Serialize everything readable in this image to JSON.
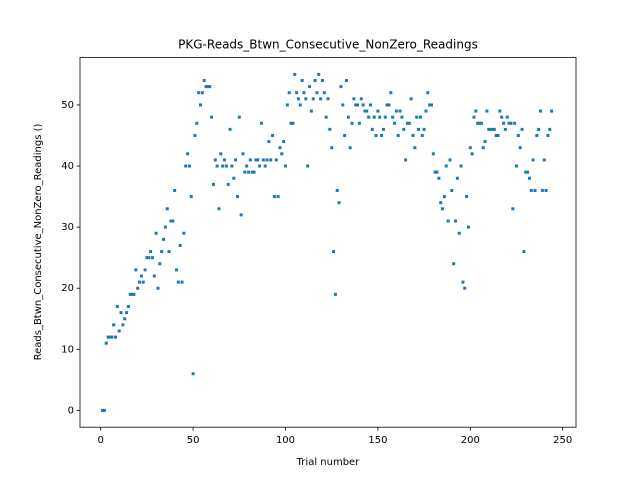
{
  "chart_data": {
    "type": "scatter",
    "title": "PKG-Reads_Btwn_Consecutive_NonZero_Readings",
    "x_label": "Trial number",
    "y_label": "Reads_Btwn_Consecutive_NonZero_Readings ()",
    "color": "#1f77b4",
    "xlim": [
      -11.2,
      257.2
    ],
    "xticks": [
      0,
      50,
      100,
      150,
      200,
      250
    ],
    "ylim": [
      -2.75,
      57.75
    ],
    "yticks": [
      0,
      10,
      20,
      30,
      40,
      50
    ],
    "x": [
      1,
      2,
      3,
      4,
      5,
      6,
      7,
      8,
      9,
      10,
      11,
      12,
      13,
      14,
      15,
      16,
      17,
      18,
      19,
      20,
      21,
      22,
      23,
      24,
      25,
      26,
      27,
      28,
      29,
      30,
      31,
      32,
      33,
      34,
      35,
      36,
      37,
      38,
      39,
      40,
      41,
      42,
      43,
      44,
      45,
      46,
      47,
      48,
      49,
      50,
      51,
      52,
      53,
      54,
      55,
      56,
      57,
      58,
      59,
      60,
      61,
      62,
      63,
      64,
      65,
      66,
      67,
      68,
      69,
      70,
      71,
      72,
      73,
      74,
      75,
      76,
      77,
      78,
      79,
      80,
      81,
      82,
      83,
      84,
      85,
      86,
      87,
      88,
      89,
      90,
      91,
      92,
      93,
      94,
      95,
      96,
      97,
      98,
      99,
      100,
      101,
      102,
      103,
      104,
      105,
      106,
      107,
      108,
      109,
      110,
      111,
      112,
      113,
      114,
      115,
      116,
      117,
      118,
      119,
      120,
      121,
      122,
      123,
      124,
      125,
      126,
      127,
      128,
      129,
      130,
      131,
      132,
      133,
      134,
      135,
      136,
      137,
      138,
      139,
      140,
      141,
      142,
      143,
      144,
      145,
      146,
      147,
      148,
      149,
      150,
      151,
      152,
      153,
      154,
      155,
      156,
      157,
      158,
      159,
      160,
      161,
      162,
      163,
      164,
      165,
      166,
      167,
      168,
      169,
      170,
      171,
      172,
      173,
      174,
      175,
      176,
      177,
      178,
      179,
      180,
      181,
      182,
      183,
      184,
      185,
      186,
      187,
      188,
      189,
      190,
      191,
      192,
      193,
      194,
      195,
      196,
      197,
      198,
      199,
      200,
      201,
      202,
      203,
      204,
      205,
      206,
      207,
      208,
      209,
      210,
      211,
      212,
      213,
      214,
      215,
      216,
      217,
      218,
      219,
      220,
      221,
      222,
      223,
      224,
      225,
      226,
      227,
      228,
      229,
      230,
      231,
      232,
      233,
      234,
      235,
      236,
      237,
      238,
      239,
      240,
      241,
      242,
      243,
      244
    ],
    "values": [
      0,
      0,
      11,
      12,
      12,
      12,
      14,
      12,
      17,
      13,
      16,
      14,
      15,
      16,
      17,
      19,
      19,
      19,
      23,
      20,
      21,
      22,
      21,
      23,
      25,
      25,
      26,
      25,
      22,
      29,
      20,
      24,
      26,
      28,
      30,
      33,
      26,
      31,
      31,
      36,
      23,
      21,
      27,
      21,
      29,
      40,
      42,
      40,
      35,
      6,
      45,
      47,
      52,
      50,
      52,
      54,
      53,
      53,
      53,
      48,
      37,
      41,
      40,
      33,
      42,
      40,
      41,
      40,
      37,
      46,
      40,
      38,
      41,
      35,
      48,
      32,
      42,
      39,
      40,
      39,
      41,
      39,
      39,
      41,
      41,
      40,
      47,
      41,
      40,
      41,
      44,
      41,
      45,
      35,
      41,
      35,
      43,
      42,
      44,
      40,
      50,
      52,
      47,
      47,
      55,
      52,
      51,
      50,
      54,
      52,
      51,
      40,
      53,
      49,
      51,
      54,
      52,
      55,
      51,
      54,
      52,
      48,
      51,
      46,
      43,
      26,
      19,
      36,
      34,
      53,
      50,
      45,
      54,
      48,
      43,
      47,
      51,
      50,
      50,
      47,
      51,
      50,
      49,
      49,
      48,
      50,
      46,
      48,
      45,
      49,
      48,
      45,
      46,
      48,
      50,
      50,
      52,
      48,
      47,
      49,
      45,
      49,
      48,
      46,
      41,
      47,
      47,
      51,
      45,
      43,
      48,
      46,
      48,
      45,
      46,
      49,
      52,
      50,
      50,
      42,
      39,
      39,
      38,
      34,
      33,
      35,
      40,
      31,
      41,
      36,
      24,
      31,
      38,
      29,
      40,
      21,
      20,
      35,
      30,
      43,
      42,
      48,
      49,
      47,
      47,
      47,
      43,
      44,
      49,
      46,
      46,
      46,
      46,
      45,
      45,
      49,
      48,
      47,
      46,
      48,
      47,
      47,
      33,
      47,
      40,
      45,
      43,
      46,
      26,
      39,
      39,
      38,
      36,
      41,
      36,
      45,
      46,
      49,
      36,
      41,
      36,
      45,
      46,
      49
    ]
  }
}
